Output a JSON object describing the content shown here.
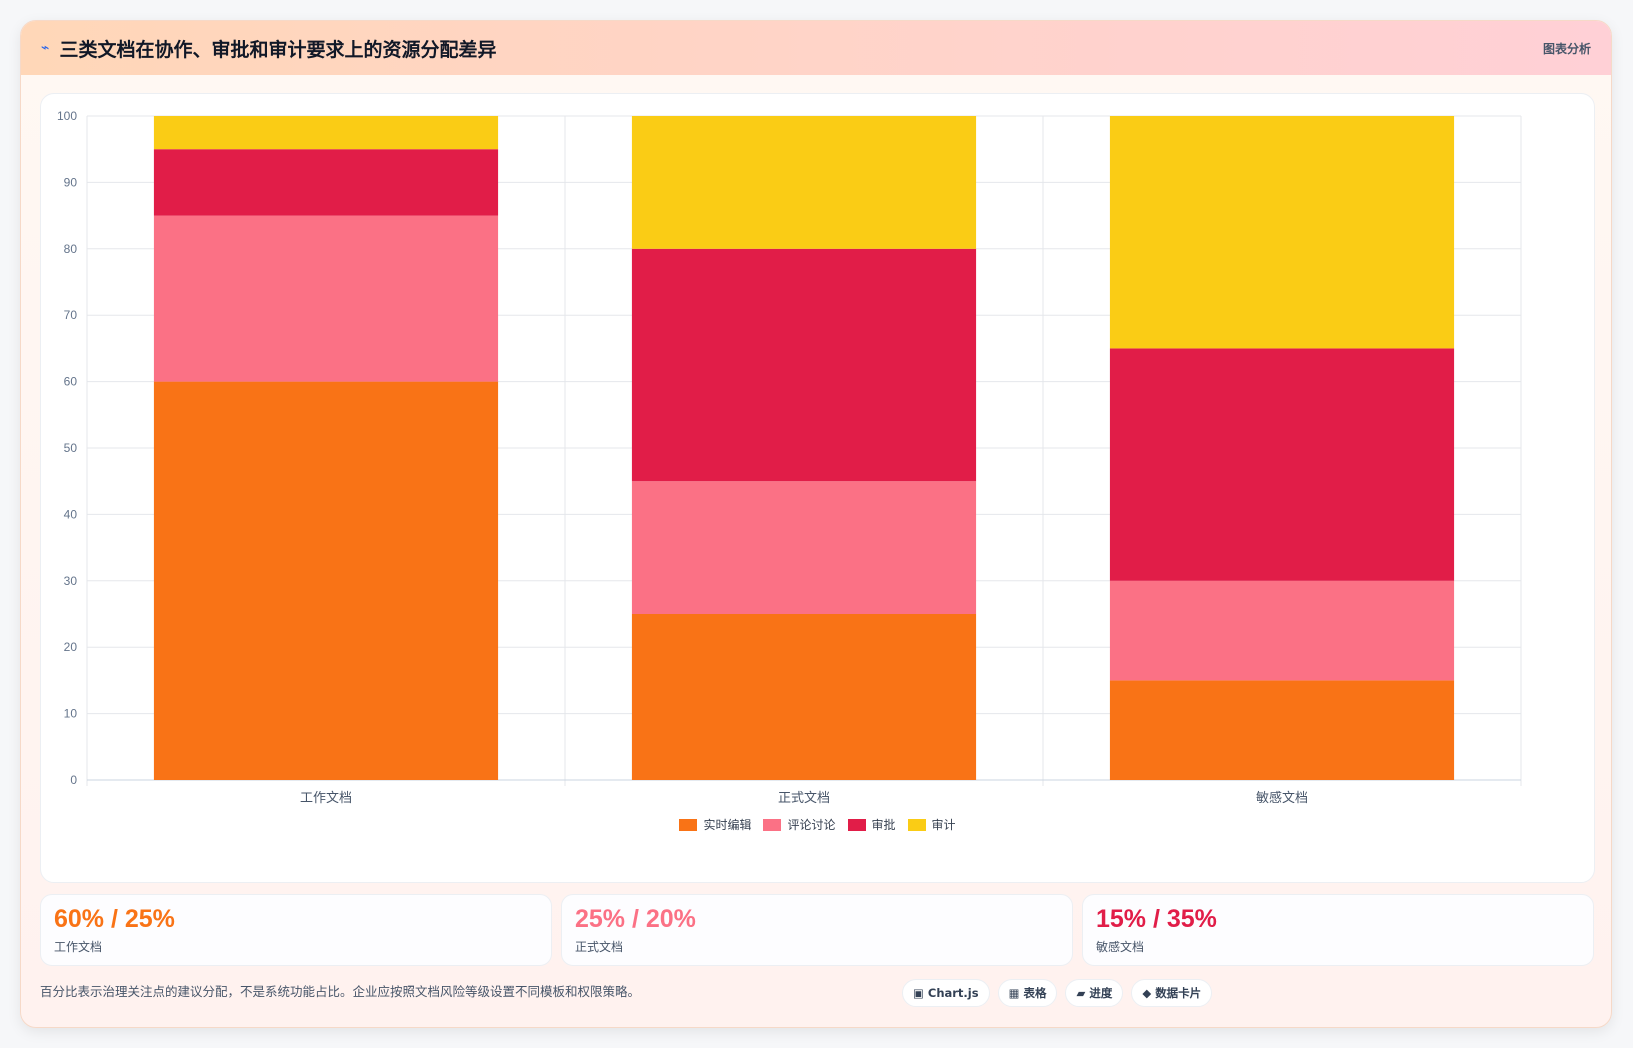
{
  "header": {
    "icon": "lightning-icon",
    "title": "三类文档在协作、审批和审计要求上的资源分配差异",
    "tag": "图表分析"
  },
  "chart_data": {
    "type": "bar",
    "stacked": true,
    "categories": [
      "工作文档",
      "正式文档",
      "敏感文档"
    ],
    "series": [
      {
        "name": "实时编辑",
        "color": "#f97316",
        "values": [
          60,
          25,
          15
        ]
      },
      {
        "name": "评论讨论",
        "color": "#fb7185",
        "values": [
          25,
          20,
          15
        ]
      },
      {
        "name": "审批",
        "color": "#e11d48",
        "values": [
          10,
          35,
          35
        ]
      },
      {
        "name": "审计",
        "color": "#facc15",
        "values": [
          5,
          20,
          35
        ]
      }
    ],
    "ylim": [
      0,
      100
    ],
    "yticks": [
      0,
      10,
      20,
      30,
      40,
      50,
      60,
      70,
      80,
      90,
      100
    ],
    "grid": true,
    "legend": "bottom"
  },
  "stats": [
    {
      "value": "60% / 25%",
      "label": "工作文档",
      "color": "#f97316"
    },
    {
      "value": "25% / 20%",
      "label": "正式文档",
      "color": "#fb7185"
    },
    {
      "value": "15% / 35%",
      "label": "敏感文档",
      "color": "#e11d48"
    }
  ],
  "footnote": "百分比表示治理关注点的建议分配，不是系统功能占比。企业应按照文档风险等级设置不同模板和权限策略。",
  "chips": [
    {
      "icon": "▣",
      "label": "Chart.js"
    },
    {
      "icon": "▦",
      "label": "表格"
    },
    {
      "icon": "▰",
      "label": "进度"
    },
    {
      "icon": "◆",
      "label": "数据卡片"
    }
  ]
}
